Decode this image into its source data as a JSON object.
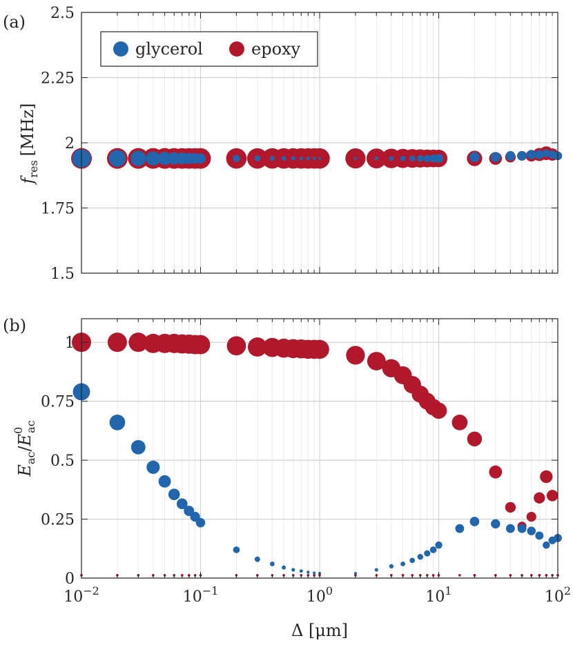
{
  "colors": {
    "glycerol": "#2166ac",
    "epoxy": "#b2182b",
    "grid": "#d9d9d9",
    "axis": "#262626"
  },
  "chart_data": [
    {
      "type": "scatter",
      "panel_label": "(a)",
      "xlabel": "Δ [μm]",
      "ylabel_main": "f",
      "ylabel_sub": "res",
      "ylabel_unit": "[MHz]",
      "xscale": "log",
      "xlim": [
        0.01,
        100
      ],
      "ylim": [
        1.5,
        2.5
      ],
      "grid": true,
      "legend": "top-left",
      "yticks": [
        {
          "value": 1.5,
          "label": "1.5"
        },
        {
          "value": 1.75,
          "label": "1.75"
        },
        {
          "value": 2.0,
          "label": "2"
        },
        {
          "value": 2.25,
          "label": "2.25"
        },
        {
          "value": 2.5,
          "label": "2.5"
        }
      ],
      "series": [
        {
          "name": "glycerol",
          "color": "#2166ac",
          "x": [
            0.01,
            0.02,
            0.03,
            0.04,
            0.05,
            0.06,
            0.07,
            0.08,
            0.09,
            0.1,
            0.2,
            0.3,
            0.4,
            0.5,
            0.6,
            0.7,
            0.8,
            0.9,
            1,
            2,
            3,
            4,
            5,
            6,
            7,
            8,
            9,
            10,
            20,
            30,
            40,
            50,
            60,
            70,
            80,
            90,
            100
          ],
          "y": [
            1.94,
            1.94,
            1.94,
            1.94,
            1.94,
            1.94,
            1.94,
            1.94,
            1.94,
            1.94,
            1.94,
            1.94,
            1.94,
            1.94,
            1.94,
            1.94,
            1.94,
            1.94,
            1.94,
            1.94,
            1.94,
            1.94,
            1.94,
            1.94,
            1.94,
            1.94,
            1.94,
            1.94,
            1.945,
            1.945,
            1.95,
            1.95,
            1.955,
            1.955,
            1.96,
            1.955,
            1.95
          ],
          "marker_size": [
            0.8,
            0.66,
            0.56,
            0.47,
            0.41,
            0.36,
            0.32,
            0.29,
            0.26,
            0.24,
            0.12,
            0.08,
            0.06,
            0.05,
            0.04,
            0.03,
            0.03,
            0.025,
            0.02,
            0.02,
            0.035,
            0.05,
            0.06,
            0.08,
            0.1,
            0.12,
            0.15,
            0.18,
            0.24,
            0.23,
            0.21,
            0.21,
            0.2,
            0.18,
            0.14,
            0.16,
            0.17
          ]
        },
        {
          "name": "epoxy",
          "color": "#b2182b",
          "x": [
            0.01,
            0.02,
            0.03,
            0.04,
            0.05,
            0.06,
            0.07,
            0.08,
            0.09,
            0.1,
            0.2,
            0.3,
            0.4,
            0.5,
            0.6,
            0.7,
            0.8,
            0.9,
            1,
            2,
            3,
            4,
            5,
            6,
            7,
            8,
            9,
            10,
            20,
            30,
            40,
            50,
            60,
            70,
            80,
            90,
            100
          ],
          "y": [
            1.94,
            1.94,
            1.94,
            1.94,
            1.94,
            1.94,
            1.94,
            1.94,
            1.94,
            1.94,
            1.94,
            1.94,
            1.94,
            1.94,
            1.94,
            1.94,
            1.94,
            1.94,
            1.94,
            1.94,
            1.94,
            1.94,
            1.94,
            1.94,
            1.94,
            1.94,
            1.94,
            1.94,
            1.94,
            1.94,
            1.945,
            1.95,
            1.95,
            1.955,
            1.96,
            1.955,
            1.95
          ],
          "marker_size": [
            1.0,
            1.0,
            1.0,
            1.0,
            1.0,
            0.99,
            0.99,
            0.99,
            0.99,
            0.99,
            0.98,
            0.98,
            0.98,
            0.97,
            0.97,
            0.97,
            0.97,
            0.97,
            0.97,
            0.95,
            0.92,
            0.89,
            0.86,
            0.82,
            0.78,
            0.75,
            0.73,
            0.71,
            0.55,
            0.38,
            0.26,
            0.22,
            0.3,
            0.4,
            0.44,
            0.35,
            0.17
          ]
        }
      ]
    },
    {
      "type": "scatter",
      "panel_label": "(b)",
      "xlabel": "Δ [μm]",
      "ylabel_main": "E",
      "ylabel_sub": "ac",
      "ylabel_den": "E",
      "ylabel_den_sub": "ac",
      "ylabel_den_sup": "0",
      "xscale": "log",
      "xlim": [
        0.01,
        100
      ],
      "ylim": [
        0,
        1.1
      ],
      "grid": true,
      "xticks": [
        {
          "value": 0.01,
          "base": "10",
          "exp": "−2"
        },
        {
          "value": 0.1,
          "base": "10",
          "exp": "−1"
        },
        {
          "value": 1,
          "base": "10",
          "exp": "0"
        },
        {
          "value": 10,
          "base": "10",
          "exp": "1"
        },
        {
          "value": 100,
          "base": "10",
          "exp": "2"
        }
      ],
      "yticks": [
        {
          "value": 0,
          "label": "0"
        },
        {
          "value": 0.25,
          "label": "0.25"
        },
        {
          "value": 0.5,
          "label": "0.5"
        },
        {
          "value": 0.75,
          "label": "0.75"
        },
        {
          "value": 1,
          "label": "1"
        }
      ],
      "series": [
        {
          "name": "glycerol",
          "color": "#2166ac",
          "x": [
            0.01,
            0.02,
            0.03,
            0.04,
            0.05,
            0.06,
            0.07,
            0.08,
            0.09,
            0.1,
            0.2,
            0.3,
            0.4,
            0.5,
            0.6,
            0.7,
            0.8,
            0.9,
            1,
            2,
            3,
            4,
            5,
            6,
            7,
            8,
            9,
            10,
            15,
            20,
            30,
            40,
            50,
            60,
            70,
            80,
            90,
            100
          ],
          "y": [
            0.79,
            0.66,
            0.555,
            0.47,
            0.41,
            0.355,
            0.315,
            0.285,
            0.26,
            0.235,
            0.12,
            0.08,
            0.06,
            0.045,
            0.035,
            0.03,
            0.025,
            0.022,
            0.02,
            0.02,
            0.035,
            0.05,
            0.06,
            0.075,
            0.09,
            0.105,
            0.12,
            0.14,
            0.21,
            0.24,
            0.23,
            0.21,
            0.21,
            0.2,
            0.18,
            0.14,
            0.16,
            0.17
          ]
        },
        {
          "name": "epoxy",
          "color": "#b2182b",
          "x": [
            0.01,
            0.02,
            0.03,
            0.04,
            0.05,
            0.06,
            0.07,
            0.08,
            0.09,
            0.1,
            0.2,
            0.3,
            0.4,
            0.5,
            0.6,
            0.7,
            0.8,
            0.9,
            1,
            2,
            3,
            4,
            5,
            6,
            7,
            8,
            9,
            10,
            15,
            20,
            30,
            40,
            50,
            60,
            70,
            80,
            90,
            100
          ],
          "y": [
            1.0,
            1.0,
            1.0,
            0.995,
            0.995,
            0.995,
            0.993,
            0.992,
            0.99,
            0.99,
            0.985,
            0.98,
            0.978,
            0.975,
            0.973,
            0.972,
            0.97,
            0.97,
            0.97,
            0.945,
            0.92,
            0.89,
            0.86,
            0.82,
            0.78,
            0.75,
            0.725,
            0.71,
            0.66,
            0.59,
            0.45,
            0.3,
            0.22,
            0.26,
            0.34,
            0.43,
            0.35,
            0.17
          ]
        }
      ]
    }
  ]
}
